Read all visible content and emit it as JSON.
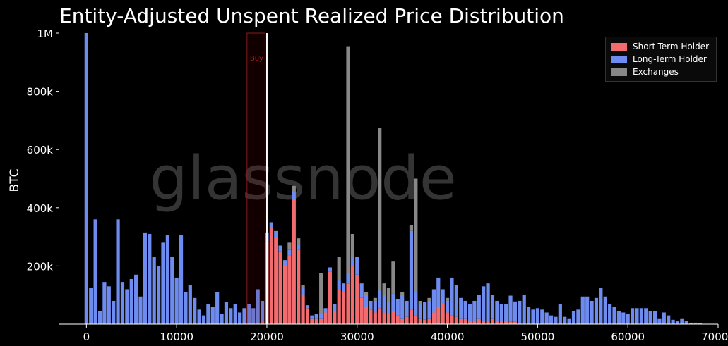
{
  "chart_data": {
    "type": "bar",
    "stacked": true,
    "title": "Entity-Adjusted Unspent Realized Price Distribution",
    "ylabel": "BTC",
    "xlabel": "",
    "xlim": [
      -3000,
      70000
    ],
    "ylim": [
      0,
      1000000
    ],
    "xticks": [
      0,
      10000,
      20000,
      30000,
      40000,
      50000,
      60000,
      70000
    ],
    "xtick_labels": [
      "0",
      "10000",
      "20000",
      "30000",
      "40000",
      "50000",
      "60000",
      "70000"
    ],
    "yticks": [
      200000,
      400000,
      600000,
      800000,
      1000000
    ],
    "ytick_labels": [
      "200k",
      "400k",
      "600k",
      "800k",
      "1M"
    ],
    "bin_width": 500,
    "watermark": "glassnode",
    "grid": false,
    "legend_position": "top-right",
    "annotation": {
      "label": "Buy",
      "x_range": [
        17800,
        19800
      ],
      "line_x": 20000
    },
    "series": [
      {
        "name": "Short-Term Holder",
        "color": "#f26b6e",
        "points": [
          [
            19500,
            10000
          ],
          [
            20000,
            285000
          ],
          [
            20500,
            330000
          ],
          [
            21000,
            300000
          ],
          [
            21500,
            250000
          ],
          [
            22000,
            200000
          ],
          [
            22500,
            235000
          ],
          [
            23000,
            430000
          ],
          [
            23500,
            255000
          ],
          [
            24000,
            100000
          ],
          [
            24500,
            55000
          ],
          [
            25000,
            20000
          ],
          [
            25500,
            20000
          ],
          [
            26000,
            20000
          ],
          [
            26500,
            40000
          ],
          [
            27000,
            180000
          ],
          [
            27500,
            45000
          ],
          [
            28000,
            120000
          ],
          [
            28500,
            110000
          ],
          [
            29000,
            140000
          ],
          [
            29500,
            200000
          ],
          [
            30000,
            170000
          ],
          [
            30500,
            90000
          ],
          [
            31000,
            60000
          ],
          [
            31500,
            50000
          ],
          [
            32000,
            40000
          ],
          [
            32500,
            55000
          ],
          [
            33000,
            40000
          ],
          [
            33500,
            35000
          ],
          [
            34000,
            45000
          ],
          [
            34500,
            30000
          ],
          [
            35000,
            20000
          ],
          [
            35500,
            25000
          ],
          [
            36000,
            50000
          ],
          [
            36500,
            30000
          ],
          [
            37000,
            20000
          ],
          [
            37500,
            15000
          ],
          [
            38000,
            20000
          ],
          [
            38500,
            40000
          ],
          [
            39000,
            60000
          ],
          [
            39500,
            70000
          ],
          [
            40000,
            40000
          ],
          [
            40500,
            30000
          ],
          [
            41000,
            25000
          ],
          [
            41500,
            20000
          ],
          [
            42000,
            20000
          ],
          [
            42500,
            10000
          ],
          [
            43000,
            10000
          ],
          [
            43500,
            20000
          ],
          [
            44000,
            10000
          ],
          [
            44500,
            10000
          ],
          [
            45000,
            20000
          ],
          [
            45500,
            10000
          ],
          [
            46000,
            10000
          ],
          [
            46500,
            10000
          ],
          [
            47000,
            8000
          ],
          [
            47500,
            8000
          ],
          [
            48000,
            5000
          ]
        ]
      },
      {
        "name": "Long-Term Holder",
        "color": "#6e8cf0",
        "points": [
          [
            0,
            1000000
          ],
          [
            500,
            125000
          ],
          [
            1000,
            360000
          ],
          [
            1500,
            45000
          ],
          [
            2000,
            145000
          ],
          [
            2500,
            130000
          ],
          [
            3000,
            80000
          ],
          [
            3500,
            360000
          ],
          [
            4000,
            145000
          ],
          [
            4500,
            120000
          ],
          [
            5000,
            155000
          ],
          [
            5500,
            170000
          ],
          [
            6000,
            95000
          ],
          [
            6500,
            315000
          ],
          [
            7000,
            310000
          ],
          [
            7500,
            230000
          ],
          [
            8000,
            200000
          ],
          [
            8500,
            280000
          ],
          [
            9000,
            305000
          ],
          [
            9500,
            230000
          ],
          [
            10000,
            160000
          ],
          [
            10500,
            305000
          ],
          [
            11000,
            110000
          ],
          [
            11500,
            135000
          ],
          [
            12000,
            90000
          ],
          [
            12500,
            50000
          ],
          [
            13000,
            30000
          ],
          [
            13500,
            70000
          ],
          [
            14000,
            60000
          ],
          [
            14500,
            110000
          ],
          [
            15000,
            35000
          ],
          [
            15500,
            75000
          ],
          [
            16000,
            55000
          ],
          [
            16500,
            70000
          ],
          [
            17000,
            40000
          ],
          [
            17500,
            55000
          ],
          [
            18000,
            70000
          ],
          [
            18500,
            55000
          ],
          [
            19000,
            120000
          ],
          [
            19500,
            70000
          ],
          [
            20000,
            30000
          ],
          [
            20500,
            20000
          ],
          [
            21000,
            20000
          ],
          [
            21500,
            20000
          ],
          [
            22000,
            20000
          ],
          [
            22500,
            20000
          ],
          [
            23000,
            25000
          ],
          [
            23500,
            20000
          ],
          [
            24000,
            25000
          ],
          [
            24500,
            10000
          ],
          [
            25000,
            10000
          ],
          [
            25500,
            15000
          ],
          [
            26000,
            15000
          ],
          [
            26500,
            15000
          ],
          [
            27000,
            15000
          ],
          [
            27500,
            25000
          ],
          [
            28000,
            30000
          ],
          [
            28500,
            30000
          ],
          [
            29000,
            35000
          ],
          [
            29500,
            30000
          ],
          [
            30000,
            60000
          ],
          [
            30500,
            50000
          ],
          [
            31000,
            40000
          ],
          [
            31500,
            30000
          ],
          [
            32000,
            40000
          ],
          [
            32500,
            60000
          ],
          [
            33000,
            60000
          ],
          [
            33500,
            40000
          ],
          [
            34000,
            60000
          ],
          [
            34500,
            55000
          ],
          [
            35000,
            80000
          ],
          [
            35500,
            55000
          ],
          [
            36000,
            270000
          ],
          [
            36500,
            80000
          ],
          [
            37000,
            50000
          ],
          [
            37500,
            60000
          ],
          [
            38000,
            60000
          ],
          [
            38500,
            80000
          ],
          [
            39000,
            100000
          ],
          [
            39500,
            50000
          ],
          [
            40000,
            40000
          ],
          [
            40500,
            130000
          ],
          [
            41000,
            110000
          ],
          [
            41500,
            70000
          ],
          [
            42000,
            60000
          ],
          [
            42500,
            60000
          ],
          [
            43000,
            70000
          ],
          [
            43500,
            80000
          ],
          [
            44000,
            120000
          ],
          [
            44500,
            130000
          ],
          [
            45000,
            80000
          ],
          [
            45500,
            70000
          ],
          [
            46000,
            60000
          ],
          [
            46500,
            60000
          ],
          [
            47000,
            90000
          ],
          [
            47500,
            70000
          ],
          [
            48000,
            75000
          ],
          [
            48500,
            100000
          ],
          [
            49000,
            60000
          ],
          [
            49500,
            50000
          ],
          [
            50000,
            55000
          ],
          [
            50500,
            50000
          ],
          [
            51000,
            40000
          ],
          [
            51500,
            30000
          ],
          [
            52000,
            25000
          ],
          [
            52500,
            70000
          ],
          [
            53000,
            25000
          ],
          [
            53500,
            20000
          ],
          [
            54000,
            45000
          ],
          [
            54500,
            50000
          ],
          [
            55000,
            95000
          ],
          [
            55500,
            95000
          ],
          [
            56000,
            80000
          ],
          [
            56500,
            90000
          ],
          [
            57000,
            125000
          ],
          [
            57500,
            95000
          ],
          [
            58000,
            70000
          ],
          [
            58500,
            60000
          ],
          [
            59000,
            45000
          ],
          [
            59500,
            40000
          ],
          [
            60000,
            35000
          ],
          [
            60500,
            55000
          ],
          [
            61000,
            55000
          ],
          [
            61500,
            55000
          ],
          [
            62000,
            55000
          ],
          [
            62500,
            45000
          ],
          [
            63000,
            45000
          ],
          [
            63500,
            20000
          ],
          [
            64000,
            40000
          ],
          [
            64500,
            30000
          ],
          [
            65000,
            15000
          ],
          [
            65500,
            10000
          ],
          [
            66000,
            20000
          ],
          [
            66500,
            10000
          ],
          [
            67000,
            5000
          ],
          [
            67500,
            5000
          ],
          [
            68000,
            3000
          ]
        ]
      },
      {
        "name": "Exchanges",
        "color": "#888888",
        "points": [
          [
            22500,
            25000
          ],
          [
            23000,
            20000
          ],
          [
            23500,
            20000
          ],
          [
            24000,
            10000
          ],
          [
            26000,
            140000
          ],
          [
            28000,
            80000
          ],
          [
            29000,
            780000
          ],
          [
            29500,
            80000
          ],
          [
            31000,
            10000
          ],
          [
            32000,
            10000
          ],
          [
            32500,
            560000
          ],
          [
            33000,
            40000
          ],
          [
            33500,
            50000
          ],
          [
            34000,
            110000
          ],
          [
            35000,
            10000
          ],
          [
            36000,
            20000
          ],
          [
            36500,
            390000
          ],
          [
            37000,
            10000
          ],
          [
            38000,
            10000
          ],
          [
            40000,
            10000
          ]
        ]
      }
    ]
  }
}
